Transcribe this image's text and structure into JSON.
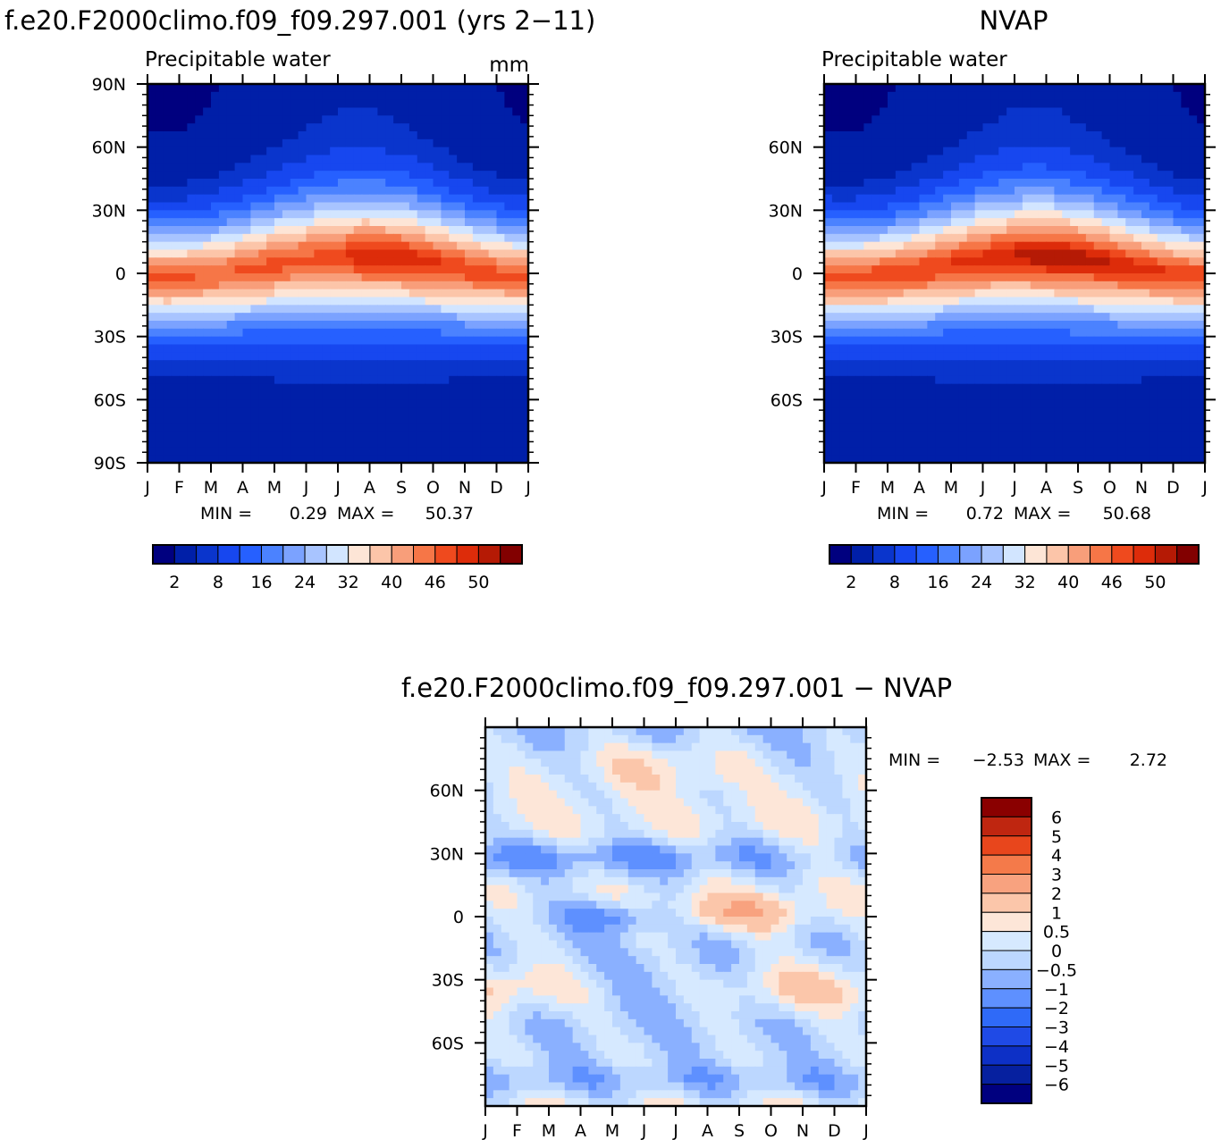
{
  "chart_data": [
    {
      "type": "heatmap",
      "title": "f.e20.F2000climo.f09_f09.297.001 (yrs 2−11)",
      "subtitle": "Precipitable water",
      "units": "mm",
      "x": [
        "J",
        "F",
        "M",
        "A",
        "M",
        "J",
        "J",
        "A",
        "S",
        "O",
        "N",
        "D",
        "J"
      ],
      "y_ticks": [
        "90N",
        "60N",
        "30N",
        "0",
        "30S",
        "60S",
        "90S"
      ],
      "ylim": [
        -90,
        90
      ],
      "stats_min_label": "MIN =",
      "stats_min": "0.29",
      "stats_max_label": "MAX =",
      "stats_max": "50.37",
      "colorbar_ticks": [
        "2",
        "8",
        "16",
        "24",
        "32",
        "40",
        "46",
        "50"
      ]
    },
    {
      "type": "heatmap",
      "title": "NVAP",
      "subtitle": "Precipitable water",
      "x": [
        "J",
        "F",
        "M",
        "A",
        "M",
        "J",
        "J",
        "A",
        "S",
        "O",
        "N",
        "D",
        "J"
      ],
      "y_ticks": [
        "60N",
        "30N",
        "0",
        "30S",
        "60S"
      ],
      "ylim": [
        -90,
        90
      ],
      "stats_min_label": "MIN =",
      "stats_min": "0.72",
      "stats_max_label": "MAX =",
      "stats_max": "50.68",
      "colorbar_ticks": [
        "2",
        "8",
        "16",
        "24",
        "32",
        "40",
        "46",
        "50"
      ]
    },
    {
      "type": "heatmap",
      "title": "f.e20.F2000climo.f09_f09.297.001 − NVAP",
      "x": [
        "J",
        "F",
        "M",
        "A",
        "M",
        "J",
        "J",
        "A",
        "S",
        "O",
        "N",
        "D",
        "J"
      ],
      "y_ticks": [
        "60N",
        "30N",
        "0",
        "30S",
        "60S"
      ],
      "ylim": [
        -90,
        90
      ],
      "stats_min_label": "MIN =",
      "stats_min": "−2.53",
      "stats_max_label": "MAX =",
      "stats_max": "2.72",
      "colorbar_ticks": [
        "6",
        "5",
        "4",
        "3",
        "2",
        "1",
        "0.5",
        "0",
        "−0.5",
        "−1",
        "−2",
        "−3",
        "−4",
        "−5",
        "−6"
      ]
    }
  ],
  "palettes": {
    "precip": [
      "#00007f",
      "#001fa8",
      "#0a35cc",
      "#1747ef",
      "#2660ff",
      "#4b82ff",
      "#7ba2ff",
      "#a8c4ff",
      "#d2e5ff",
      "#fde5d6",
      "#fcc5a9",
      "#f89e7a",
      "#f67647",
      "#ef4a1e",
      "#dd2c0a",
      "#b51a05",
      "#820000"
    ],
    "diff": [
      "#00007f",
      "#06209f",
      "#0d30c6",
      "#1f4ae6",
      "#2f6af8",
      "#5e90ff",
      "#8ab0ff",
      "#bcd7ff",
      "#d6e9ff",
      "#fde6d8",
      "#fbc6aa",
      "#f8a27f",
      "#f47a4a",
      "#e8461c",
      "#bf2610",
      "#8a0000"
    ]
  }
}
